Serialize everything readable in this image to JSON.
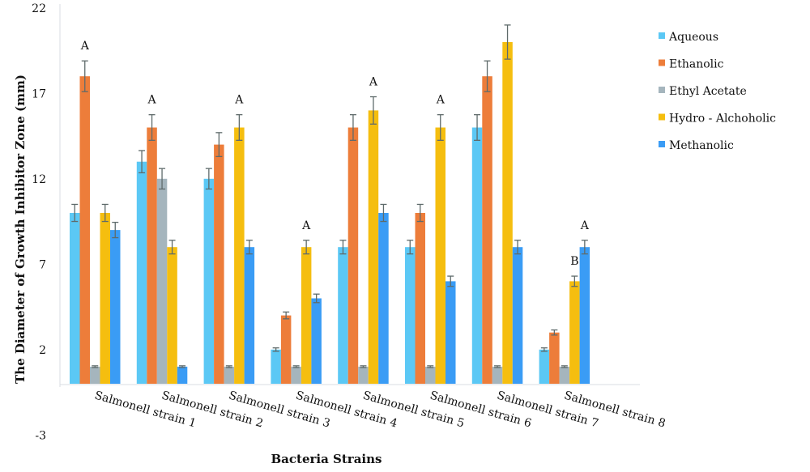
{
  "chart_data": {
    "type": "bar",
    "title": "",
    "xlabel": "Bacteria Strains",
    "ylabel": "The Diameter of Growth Inhibitor Zone (mm)",
    "ylim": [
      -3,
      22
    ],
    "yticks": [
      -3,
      2,
      7,
      12,
      17,
      22
    ],
    "grid": false,
    "legend_position": "right",
    "categories": [
      "Salmonell strain 1",
      "Salmonell strain 2",
      "Salmonell strain 3",
      "Salmonell strain 4",
      "Salmonell strain 5",
      "Salmonell strain 6",
      "Salmonell strain 7",
      "Salmonell strain 8"
    ],
    "series": [
      {
        "name": "Aqueous",
        "color": "#5bc8f5",
        "values": [
          10,
          13,
          12,
          2,
          8,
          8,
          15,
          2
        ]
      },
      {
        "name": "Ethanolic",
        "color": "#ed7d3a",
        "values": [
          18,
          15,
          14,
          4,
          15,
          10,
          18,
          3
        ]
      },
      {
        "name": "Ethyl Acetate",
        "color": "#a5b5bd",
        "values": [
          1,
          12,
          1,
          1,
          1,
          1,
          1,
          1
        ]
      },
      {
        "name": "Hydro - Alchoholic",
        "color": "#f5be0f",
        "values": [
          10,
          8,
          15,
          8,
          16,
          15,
          20,
          6
        ]
      },
      {
        "name": "Methanolic",
        "color": "#3a9cf5",
        "values": [
          9,
          1,
          8,
          5,
          10,
          6,
          8,
          8
        ]
      }
    ],
    "annotations": [
      {
        "category": 0,
        "series": 1,
        "text": "A"
      },
      {
        "category": 1,
        "series": 1,
        "text": "A"
      },
      {
        "category": 2,
        "series": 3,
        "text": "A"
      },
      {
        "category": 3,
        "series": 3,
        "text": "A"
      },
      {
        "category": 4,
        "series": 3,
        "text": "A"
      },
      {
        "category": 5,
        "series": 3,
        "text": "A"
      },
      {
        "category": 7,
        "series": 3,
        "text": "B"
      },
      {
        "category": 7,
        "series": 4,
        "text": "A"
      }
    ]
  }
}
